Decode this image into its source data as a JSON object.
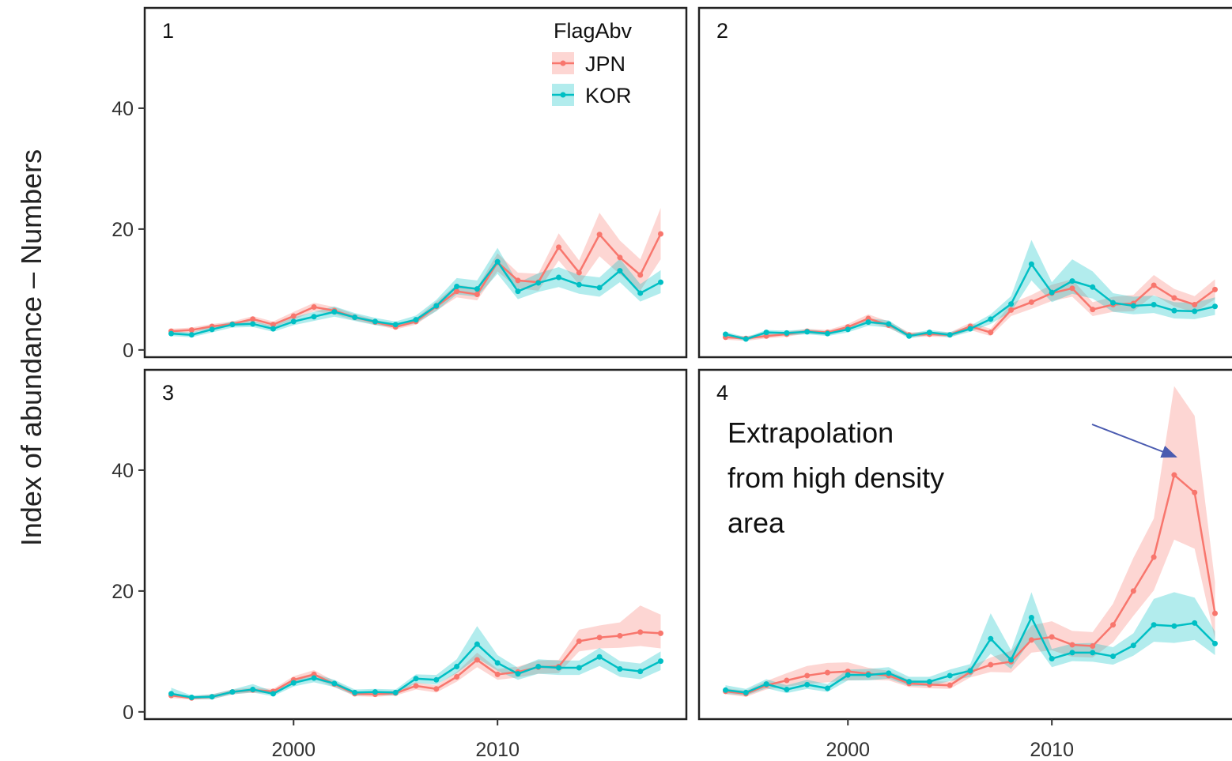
{
  "chart_data": {
    "type": "line",
    "y_label": "Index of abundance – Numbers",
    "legend_title": "FlagAbv",
    "series": [
      {
        "name": "JPN",
        "color": "#F8766D"
      },
      {
        "name": "KOR",
        "color": "#00BFC4"
      }
    ],
    "x": [
      1994,
      1995,
      1996,
      1997,
      1998,
      1999,
      2000,
      2001,
      2002,
      2003,
      2004,
      2005,
      2006,
      2007,
      2008,
      2009,
      2010,
      2011,
      2012,
      2013,
      2014,
      2015,
      2016,
      2017,
      2018
    ],
    "xlim": [
      1992.7,
      2019.26
    ],
    "xticks": [
      2000,
      2010
    ],
    "ylim": [
      -1.2,
      56.6
    ],
    "yticks": [
      0,
      20,
      40
    ],
    "panels": [
      {
        "label": "1",
        "series": [
          {
            "values": [
              3.1,
              3.3,
              3.9,
              4.3,
              5.1,
              4.2,
              5.6,
              7.1,
              6.5,
              5.4,
              4.6,
              3.8,
              4.7,
              7.2,
              9.7,
              9.2,
              14.5,
              11.5,
              11.2,
              17,
              12.8,
              19.1,
              15.3,
              12.4,
              19.2
            ],
            "lower": [
              2.7,
              2.9,
              3.5,
              3.9,
              4.6,
              3.7,
              5.0,
              6.4,
              5.9,
              4.9,
              4.2,
              3.4,
              4.2,
              6.5,
              8.7,
              8.2,
              13.0,
              10.2,
              9.8,
              14.8,
              10.8,
              15.5,
              12.5,
              9.8,
              15.0
            ],
            "upper": [
              3.5,
              3.7,
              4.3,
              4.7,
              5.6,
              4.7,
              6.3,
              7.8,
              7.1,
              5.9,
              5.0,
              4.2,
              5.2,
              8.0,
              10.8,
              10.3,
              16.0,
              12.8,
              12.6,
              19.3,
              14.8,
              22.7,
              18.1,
              15.0,
              23.5
            ]
          },
          {
            "values": [
              2.7,
              2.5,
              3.4,
              4.2,
              4.3,
              3.5,
              4.7,
              5.5,
              6.3,
              5.4,
              4.7,
              4.2,
              5.0,
              7.3,
              10.5,
              10.1,
              14.6,
              9.7,
              11.1,
              12.0,
              10.8,
              10.3,
              13.1,
              9.4,
              11.2
            ],
            "lower": [
              2.3,
              2.1,
              2.9,
              3.7,
              3.8,
              3.0,
              4.1,
              4.8,
              5.5,
              4.8,
              4.1,
              3.7,
              4.4,
              6.4,
              9.2,
              8.8,
              12.6,
              8.4,
              9.6,
              10.4,
              9.3,
              8.8,
              11.2,
              8.0,
              9.4
            ],
            "upper": [
              3.1,
              2.9,
              3.9,
              4.7,
              4.8,
              4.0,
              5.4,
              6.3,
              7.2,
              6.1,
              5.3,
              4.7,
              5.7,
              8.3,
              11.9,
              11.5,
              16.9,
              11.1,
              12.7,
              13.7,
              12.4,
              12.0,
              15.1,
              10.9,
              13.2
            ]
          }
        ]
      },
      {
        "label": "2",
        "series": [
          {
            "values": [
              2.1,
              1.9,
              2.3,
              2.6,
              3.1,
              2.9,
              3.8,
              5.2,
              4.1,
              2.5,
              2.6,
              2.5,
              3.9,
              2.9,
              6.6,
              7.9,
              9.4,
              10.2,
              6.7,
              7.5,
              7.7,
              10.7,
              8.6,
              7.5,
              10.0
            ],
            "lower": [
              1.7,
              1.5,
              1.9,
              2.2,
              2.7,
              2.5,
              3.3,
              4.6,
              3.6,
              2.1,
              2.2,
              2.1,
              3.3,
              2.3,
              5.6,
              6.8,
              8.1,
              8.8,
              5.6,
              6.3,
              6.4,
              9.1,
              7.2,
              6.2,
              8.4
            ],
            "upper": [
              2.5,
              2.3,
              2.7,
              3.0,
              3.5,
              3.3,
              4.3,
              5.9,
              4.7,
              2.9,
              3.0,
              2.9,
              4.5,
              3.5,
              7.7,
              9.1,
              10.8,
              11.7,
              7.9,
              8.8,
              9.1,
              12.4,
              10.1,
              8.9,
              11.7
            ]
          },
          {
            "values": [
              2.6,
              1.8,
              2.9,
              2.8,
              3.0,
              2.7,
              3.4,
              4.6,
              4.3,
              2.3,
              2.9,
              2.5,
              3.5,
              5.1,
              7.6,
              14.2,
              9.5,
              11.4,
              10.4,
              7.8,
              7.3,
              7.5,
              6.5,
              6.4,
              7.2
            ],
            "lower": [
              2.2,
              1.5,
              2.5,
              2.4,
              2.6,
              2.3,
              2.9,
              4.0,
              3.7,
              1.9,
              2.5,
              2.1,
              3.0,
              4.3,
              6.3,
              11.5,
              7.9,
              9.3,
              8.5,
              6.3,
              5.9,
              6.1,
              5.2,
              5.1,
              5.8
            ],
            "upper": [
              3.0,
              2.1,
              3.3,
              3.2,
              3.4,
              3.1,
              3.9,
              5.2,
              4.9,
              2.7,
              3.3,
              2.9,
              4.0,
              5.9,
              8.9,
              18.2,
              11.2,
              15.0,
              13.0,
              9.4,
              8.8,
              9.0,
              7.9,
              7.8,
              8.7
            ]
          }
        ]
      },
      {
        "label": "3",
        "series": [
          {
            "values": [
              2.7,
              2.3,
              2.5,
              3.3,
              3.6,
              3.4,
              5.3,
              6.2,
              4.6,
              3.0,
              2.9,
              3.1,
              4.3,
              3.8,
              5.8,
              8.6,
              6.2,
              6.6,
              7.4,
              7.5,
              11.7,
              12.3,
              12.6,
              13.2,
              13.0
            ],
            "lower": [
              2.3,
              2.0,
              2.1,
              2.9,
              3.2,
              3.0,
              4.7,
              5.5,
              4.1,
              2.6,
              2.5,
              2.7,
              3.7,
              3.2,
              5.0,
              7.4,
              5.3,
              5.7,
              6.3,
              6.4,
              10.0,
              10.5,
              10.6,
              10.9,
              10.5
            ],
            "upper": [
              3.1,
              2.6,
              2.9,
              3.7,
              4.0,
              3.8,
              5.9,
              6.9,
              5.1,
              3.4,
              3.3,
              3.5,
              4.9,
              4.4,
              6.6,
              9.8,
              7.1,
              7.5,
              8.5,
              8.6,
              13.6,
              14.3,
              14.8,
              17.6,
              16.1
            ]
          },
          {
            "values": [
              3.0,
              2.4,
              2.5,
              3.3,
              3.7,
              3.0,
              4.8,
              5.6,
              4.7,
              3.2,
              3.3,
              3.2,
              5.5,
              5.3,
              7.5,
              11.2,
              8.1,
              6.3,
              7.5,
              7.3,
              7.3,
              9.1,
              7.1,
              6.7,
              8.4
            ],
            "lower": [
              2.6,
              2.1,
              2.1,
              2.9,
              3.2,
              2.6,
              4.2,
              4.9,
              4.1,
              2.7,
              2.8,
              2.7,
              4.8,
              4.5,
              6.4,
              8.9,
              6.8,
              5.3,
              6.3,
              6.1,
              6.1,
              7.6,
              5.8,
              5.4,
              6.9
            ],
            "upper": [
              4.0,
              2.7,
              2.9,
              3.7,
              4.6,
              3.4,
              5.4,
              6.3,
              5.3,
              3.7,
              3.8,
              3.7,
              6.2,
              6.1,
              8.7,
              14.2,
              9.4,
              7.3,
              8.7,
              8.5,
              8.5,
              10.6,
              8.4,
              8.0,
              10.0
            ]
          }
        ]
      },
      {
        "label": "4",
        "series": [
          {
            "values": [
              3.4,
              3.0,
              4.4,
              5.2,
              6.0,
              6.5,
              6.7,
              6.3,
              6.0,
              4.7,
              4.5,
              4.4,
              6.6,
              7.8,
              8.3,
              11.9,
              12.4,
              11.1,
              10.9,
              14.4,
              20.0,
              25.6,
              39.2,
              36.3,
              16.3
            ],
            "lower": [
              2.9,
              2.5,
              3.7,
              4.2,
              4.6,
              4.9,
              5.2,
              5.3,
              5.2,
              4.1,
              3.9,
              3.8,
              5.7,
              6.6,
              6.5,
              9.8,
              10.2,
              9.1,
              9.0,
              11.5,
              15.9,
              20.1,
              28.5,
              27.0,
              12.0
            ],
            "upper": [
              3.9,
              3.5,
              5.1,
              6.4,
              7.6,
              8.1,
              8.2,
              7.3,
              6.8,
              5.3,
              5.1,
              5.0,
              7.5,
              9.0,
              10.1,
              14.3,
              15.0,
              13.4,
              13.2,
              17.9,
              25.5,
              32.0,
              53.9,
              49.0,
              21.5
            ]
          },
          {
            "values": [
              3.6,
              3.2,
              4.6,
              3.7,
              4.5,
              3.9,
              6.1,
              6.1,
              6.4,
              5.0,
              5.0,
              6.0,
              6.8,
              12.1,
              8.6,
              15.6,
              8.8,
              9.8,
              9.8,
              9.2,
              11.0,
              14.4,
              14.2,
              14.7,
              11.3
            ],
            "lower": [
              3.0,
              2.7,
              3.9,
              3.1,
              3.8,
              3.3,
              5.2,
              5.2,
              5.5,
              4.3,
              4.3,
              5.1,
              5.8,
              9.6,
              7.1,
              12.1,
              7.4,
              8.4,
              8.3,
              7.8,
              9.3,
              11.6,
              11.4,
              11.9,
              9.4
            ],
            "upper": [
              4.4,
              3.8,
              5.4,
              4.4,
              5.3,
              4.6,
              7.0,
              7.1,
              7.4,
              5.8,
              5.8,
              7.0,
              7.9,
              16.3,
              10.2,
              19.8,
              10.4,
              11.3,
              11.4,
              10.7,
              13.0,
              18.7,
              19.8,
              18.9,
              13.3
            ]
          }
        ],
        "annotation": [
          "Extrapolation",
          "from high density",
          "area"
        ]
      }
    ]
  }
}
